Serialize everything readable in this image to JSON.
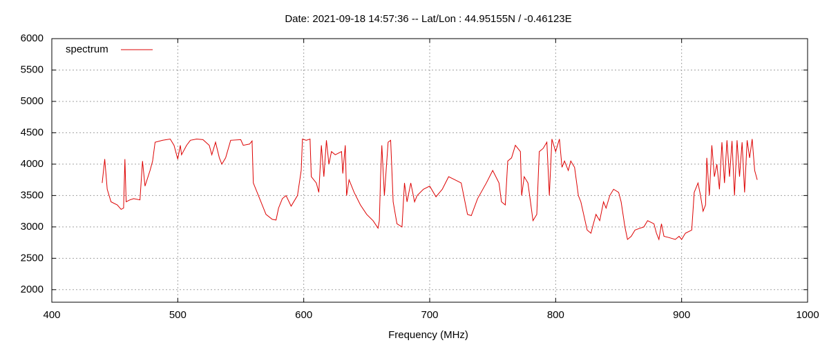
{
  "chart_data": {
    "type": "line",
    "title": "Date: 2021-09-18 14:57:36  --  Lat/Lon : 44.95155N / -0.46123E",
    "x_label": "Frequency (MHz)",
    "xlim": [
      400,
      1000
    ],
    "xticks": [
      400,
      500,
      600,
      700,
      800,
      900,
      1000
    ],
    "ylim": [
      1800,
      6000
    ],
    "yticks": [
      2000,
      2500,
      3000,
      3500,
      4000,
      4500,
      5000,
      5500,
      6000
    ],
    "grid": true,
    "legend": "top-left",
    "x": [
      440,
      442,
      444,
      447,
      452,
      455,
      457,
      458,
      459,
      462,
      465,
      470,
      472,
      474,
      478,
      480,
      482,
      488,
      494,
      497,
      500,
      502,
      503,
      507,
      510,
      515,
      520,
      525,
      527,
      530,
      533,
      535,
      538,
      542,
      550,
      552,
      557,
      559,
      560,
      565,
      570,
      575,
      578,
      580,
      583,
      586,
      590,
      595,
      598,
      599,
      602,
      605,
      606,
      610,
      612,
      614,
      616,
      618,
      620,
      622,
      625,
      630,
      631,
      633,
      634,
      636,
      640,
      645,
      650,
      655,
      659,
      660,
      661,
      662,
      664,
      667,
      669,
      671,
      674,
      678,
      680,
      682,
      685,
      688,
      690,
      695,
      700,
      705,
      710,
      715,
      720,
      725,
      730,
      733,
      738,
      745,
      750,
      755,
      757,
      760,
      762,
      765,
      768,
      772,
      773,
      775,
      778,
      780,
      782,
      785,
      787,
      790,
      793,
      795,
      797,
      800,
      803,
      805,
      807,
      810,
      812,
      815,
      818,
      820,
      825,
      828,
      830,
      832,
      835,
      838,
      840,
      843,
      846,
      850,
      852,
      855,
      857,
      860,
      863,
      867,
      870,
      873,
      878,
      880,
      882,
      884,
      886,
      890,
      895,
      898,
      900,
      903,
      908,
      910,
      913,
      915,
      917,
      919,
      920,
      922,
      924,
      926,
      928,
      930,
      932,
      934,
      936,
      938,
      940,
      942,
      944,
      946,
      948,
      950,
      952,
      954,
      956,
      958,
      960
    ],
    "series": [
      {
        "name": "spectrum",
        "color": "#dd0000",
        "values": [
          3700,
          4080,
          3600,
          3400,
          3350,
          3280,
          3300,
          4080,
          3400,
          3430,
          3450,
          3430,
          4050,
          3650,
          3900,
          4050,
          4350,
          4380,
          4400,
          4300,
          4080,
          4300,
          4150,
          4300,
          4380,
          4400,
          4390,
          4300,
          4150,
          4350,
          4100,
          4000,
          4100,
          4380,
          4390,
          4300,
          4320,
          4370,
          3700,
          3450,
          3200,
          3120,
          3110,
          3300,
          3450,
          3500,
          3330,
          3500,
          3900,
          4400,
          4380,
          4400,
          3800,
          3700,
          3550,
          4300,
          3800,
          4380,
          4000,
          4200,
          4150,
          4200,
          3850,
          4300,
          3500,
          3750,
          3550,
          3350,
          3200,
          3100,
          2980,
          3100,
          3800,
          4300,
          3500,
          4350,
          4380,
          3400,
          3050,
          3000,
          3700,
          3400,
          3700,
          3400,
          3500,
          3600,
          3650,
          3480,
          3600,
          3800,
          3750,
          3700,
          3200,
          3180,
          3450,
          3700,
          3900,
          3700,
          3400,
          3350,
          4050,
          4100,
          4300,
          4200,
          3500,
          3800,
          3700,
          3400,
          3100,
          3200,
          4200,
          4250,
          4350,
          3500,
          4400,
          4200,
          4400,
          3950,
          4050,
          3900,
          4050,
          3950,
          3500,
          3400,
          2950,
          2900,
          3050,
          3200,
          3100,
          3400,
          3300,
          3500,
          3600,
          3550,
          3400,
          3000,
          2800,
          2850,
          2950,
          2980,
          3000,
          3100,
          3050,
          2900,
          2800,
          3050,
          2850,
          2830,
          2800,
          2850,
          2800,
          2900,
          2950,
          3550,
          3700,
          3500,
          3250,
          3350,
          4100,
          3500,
          4300,
          3800,
          4000,
          3600,
          4350,
          3700,
          4380,
          3800,
          4370,
          3500,
          4380,
          3800,
          4350,
          3550,
          4380,
          4100,
          4400,
          3900,
          3750
        ]
      }
    ]
  }
}
